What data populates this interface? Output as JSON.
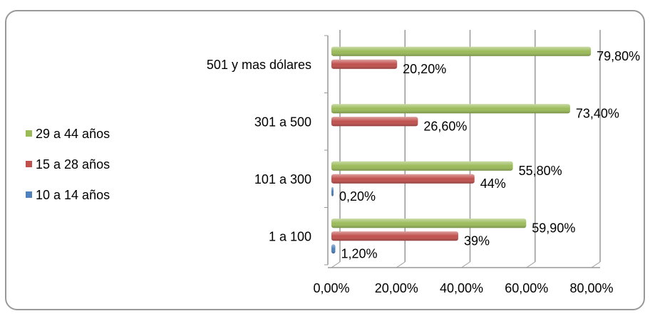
{
  "chart_data": {
    "type": "bar",
    "orientation": "horizontal",
    "categories": [
      "1 a 100",
      "101 a 300",
      "301 a 500",
      "501 y mas dólares"
    ],
    "series": [
      {
        "name": "10 a 14 años",
        "color": "#4f81bd",
        "values": [
          1.2,
          0.2,
          null,
          null
        ],
        "value_labels": [
          "1,20%",
          "0,20%",
          null,
          null
        ]
      },
      {
        "name": "15 a 28 años",
        "color": "#c0504d",
        "values": [
          39,
          44,
          26.6,
          20.2
        ],
        "value_labels": [
          "39%",
          "44%",
          "26,60%",
          "20,20%"
        ]
      },
      {
        "name": "29 a 44 años",
        "color": "#9bbb59",
        "values": [
          59.9,
          55.8,
          73.4,
          79.8
        ],
        "value_labels": [
          "59,90%",
          "55,80%",
          "73,40%",
          "79,80%"
        ]
      }
    ],
    "xlim": [
      0,
      80
    ],
    "xticks": [
      {
        "value": 0,
        "label": "0,00%"
      },
      {
        "value": 20,
        "label": "20,00%"
      },
      {
        "value": 40,
        "label": "40,00%"
      },
      {
        "value": 60,
        "label": "60,00%"
      },
      {
        "value": 80,
        "label": "80,00%"
      }
    ],
    "grid": true,
    "legend": "left"
  }
}
